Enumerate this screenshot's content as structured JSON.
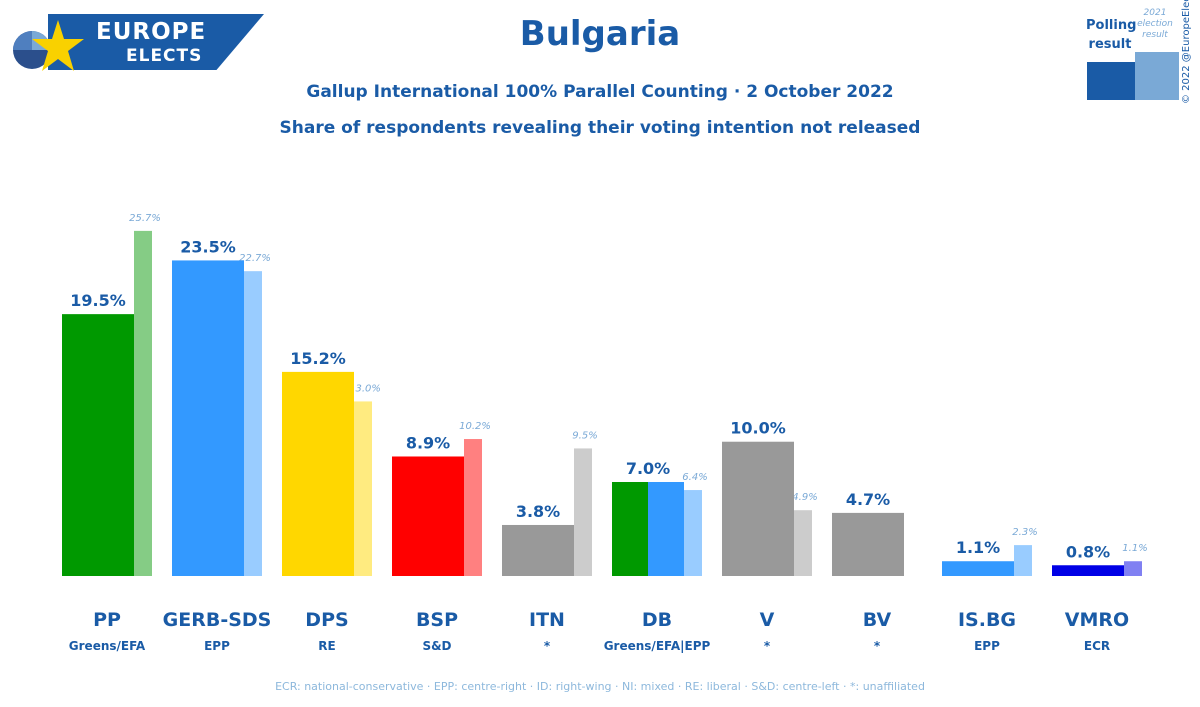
{
  "logo": {
    "line1": "EUROPE",
    "line2": "ELECTS"
  },
  "title": "Bulgaria",
  "subtitle": "Gallup International 100% Parallel Counting · 2 October 2022",
  "subtitle2": "Share of respondents revealing their voting intention not released",
  "legend": {
    "poll_label": "Polling result",
    "prev_label": "2021 election result",
    "poll_color": "#1a5ba6",
    "prev_color": "#7aa9d6"
  },
  "copyright": "© 2022 @EuropeElects",
  "footnote": "ECR: national-conservative · EPP: centre-right · ID: right-wing · NI: mixed · RE: liberal · S&D: centre-left · *: unaffiliated",
  "chart_data": {
    "type": "bar",
    "ylim": [
      0,
      28
    ],
    "categories": [
      "PP",
      "GERB-SDS",
      "DPS",
      "BSP",
      "ITN",
      "DB",
      "V",
      "BV",
      "IS.BG",
      "VMRO"
    ],
    "groups": [
      "Greens/EFA",
      "EPP",
      "RE",
      "S&D",
      "*",
      "Greens/EFA|EPP",
      "*",
      "*",
      "EPP",
      "ECR"
    ],
    "series": [
      {
        "name": "Polling result",
        "values": [
          19.5,
          23.5,
          15.2,
          8.9,
          3.8,
          7.0,
          10.0,
          4.7,
          1.1,
          0.8
        ],
        "labels": [
          "19.5%",
          "23.5%",
          "15.2%",
          "8.9%",
          "3.8%",
          "7.0%",
          "10.0%",
          "4.7%",
          "1.1%",
          "0.8%"
        ]
      },
      {
        "name": "2021 election result",
        "values": [
          25.7,
          22.7,
          13.0,
          10.2,
          9.5,
          6.4,
          4.9,
          null,
          2.3,
          1.1
        ],
        "labels": [
          "25.7%",
          "22.7%",
          "13.0%",
          "10.2%",
          "9.5%",
          "6.4%",
          "4.9%",
          "",
          "2.3%",
          "1.1%"
        ]
      }
    ],
    "colors": [
      {
        "main": [
          "#009900"
        ],
        "prev": "#85cc85"
      },
      {
        "main": [
          "#3399ff"
        ],
        "prev": "#99ccff"
      },
      {
        "main": [
          "#ffd700"
        ],
        "prev": "#ffeb80"
      },
      {
        "main": [
          "#ff0000"
        ],
        "prev": "#ff8080"
      },
      {
        "main": [
          "#999999"
        ],
        "prev": "#cccccc"
      },
      {
        "main": [
          "#009900",
          "#3399ff"
        ],
        "prev": "#99ccff"
      },
      {
        "main": [
          "#999999"
        ],
        "prev": "#cccccc"
      },
      {
        "main": [
          "#999999"
        ],
        "prev": "#cccccc"
      },
      {
        "main": [
          "#3399ff"
        ],
        "prev": "#99ccff"
      },
      {
        "main": [
          "#0000e6"
        ],
        "prev": "#8080f2"
      }
    ]
  }
}
